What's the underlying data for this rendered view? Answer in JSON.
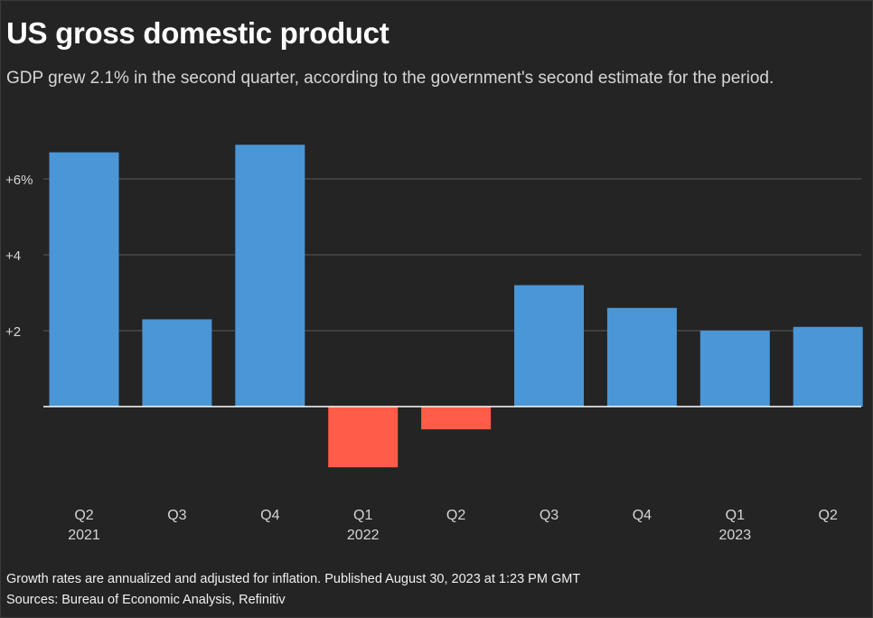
{
  "header": {
    "title": "US gross domestic product",
    "subtitle": "GDP grew 2.1% in the second quarter, according to the government's second estimate for the period."
  },
  "footer": {
    "note": "Growth rates are annualized and adjusted for inflation. Published August 30, 2023 at 1:23 PM GMT",
    "sources": "Sources: Bureau of Economic Analysis, Refinitiv"
  },
  "colors": {
    "positive": "#4a96d6",
    "negative": "#ff5c4a",
    "gridline": "#5a5a5a",
    "zero_line": "#ffffff",
    "tick_text": "#d6d6d6"
  },
  "chart_data": {
    "type": "bar",
    "categories": [
      "Q2",
      "Q3",
      "Q4",
      "Q1",
      "Q2",
      "Q3",
      "Q4",
      "Q1",
      "Q2"
    ],
    "category_years": [
      "2021",
      "",
      "",
      "2022",
      "",
      "",
      "",
      "2023",
      ""
    ],
    "values": [
      6.7,
      2.3,
      6.9,
      -1.6,
      -0.6,
      3.2,
      2.6,
      2.0,
      2.1
    ],
    "ylim": [
      -2.3,
      7.2
    ],
    "yticks": [
      {
        "value": 6,
        "label": "+6%"
      },
      {
        "value": 4,
        "label": "+4"
      },
      {
        "value": 2,
        "label": "+2"
      }
    ],
    "grid": true,
    "legend": "none"
  }
}
